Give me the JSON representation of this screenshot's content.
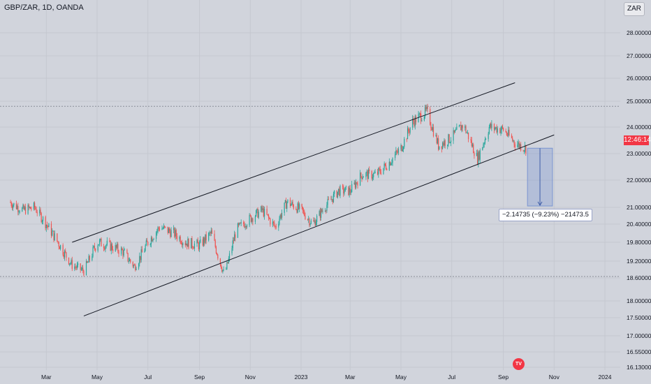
{
  "header": {
    "symbol": "GBP/ZAR, 1D, OANDA",
    "currency": "ZAR"
  },
  "price_tag": "12:46:14",
  "measure_label": "−2.14735 (−9.23%) −21473.5",
  "logo": "TV",
  "colors": {
    "up": "#26a69a",
    "down": "#ef5350",
    "background": "#d1d4dc",
    "measure": "#7a95d1"
  },
  "chart_data": {
    "type": "candlestick",
    "title": "GBP/ZAR, 1D, OANDA",
    "y_ticks": [
      "28.00000",
      "27.00000",
      "26.00000",
      "25.00000",
      "24.00000",
      "23.00000",
      "22.00000",
      "21.00000",
      "20.40000",
      "19.80000",
      "19.20000",
      "18.60000",
      "18.00000",
      "17.50000",
      "17.00000",
      "16.55000",
      "16.13000"
    ],
    "x_ticks": [
      "Mar",
      "May",
      "Jul",
      "Sep",
      "Nov",
      "2023",
      "Mar",
      "May",
      "Jul",
      "Sep",
      "Nov",
      "2024"
    ],
    "ylim": [
      16.13,
      28.0
    ],
    "y_scale": "log",
    "grid": true,
    "price_path": [
      {
        "date": "2022-01-15",
        "close": 21.2
      },
      {
        "date": "2022-02-01",
        "close": 20.9
      },
      {
        "date": "2022-02-15",
        "close": 21.0
      },
      {
        "date": "2022-03-01",
        "close": 20.4
      },
      {
        "date": "2022-03-15",
        "close": 19.8
      },
      {
        "date": "2022-04-01",
        "close": 19.05
      },
      {
        "date": "2022-04-15",
        "close": 18.85
      },
      {
        "date": "2022-05-01",
        "close": 19.8
      },
      {
        "date": "2022-05-15",
        "close": 19.7
      },
      {
        "date": "2022-06-01",
        "close": 19.5
      },
      {
        "date": "2022-06-15",
        "close": 19.0
      },
      {
        "date": "2022-07-01",
        "close": 19.8
      },
      {
        "date": "2022-07-15",
        "close": 20.3
      },
      {
        "date": "2022-08-01",
        "close": 20.1
      },
      {
        "date": "2022-08-15",
        "close": 19.8
      },
      {
        "date": "2022-09-01",
        "close": 19.7
      },
      {
        "date": "2022-09-15",
        "close": 20.1
      },
      {
        "date": "2022-10-01",
        "close": 18.7
      },
      {
        "date": "2022-10-15",
        "close": 20.2
      },
      {
        "date": "2022-11-01",
        "close": 20.6
      },
      {
        "date": "2022-11-15",
        "close": 20.9
      },
      {
        "date": "2022-12-01",
        "close": 20.3
      },
      {
        "date": "2022-12-15",
        "close": 21.2
      },
      {
        "date": "2023-01-01",
        "close": 20.9
      },
      {
        "date": "2023-01-15",
        "close": 20.4
      },
      {
        "date": "2023-02-01",
        "close": 21.1
      },
      {
        "date": "2023-02-15",
        "close": 21.6
      },
      {
        "date": "2023-03-01",
        "close": 21.6
      },
      {
        "date": "2023-03-15",
        "close": 22.2
      },
      {
        "date": "2023-04-01",
        "close": 22.2
      },
      {
        "date": "2023-04-15",
        "close": 22.6
      },
      {
        "date": "2023-05-01",
        "close": 23.2
      },
      {
        "date": "2023-05-15",
        "close": 24.2
      },
      {
        "date": "2023-06-01",
        "close": 24.6
      },
      {
        "date": "2023-06-15",
        "close": 23.3
      },
      {
        "date": "2023-07-01",
        "close": 23.6
      },
      {
        "date": "2023-07-15",
        "close": 24.1
      },
      {
        "date": "2023-08-01",
        "close": 22.8
      },
      {
        "date": "2023-08-15",
        "close": 24.0
      },
      {
        "date": "2023-09-01",
        "close": 23.9
      },
      {
        "date": "2023-09-15",
        "close": 23.4
      },
      {
        "date": "2023-09-28",
        "close": 23.2
      }
    ],
    "horizontal_levels": [
      24.8,
      18.65
    ],
    "channel": {
      "upper": [
        {
          "date": "2022-04-01",
          "price": 19.8
        },
        {
          "date": "2023-09-15",
          "price": 25.8
        }
      ],
      "lower": [
        {
          "date": "2022-04-15",
          "price": 17.55
        },
        {
          "date": "2023-11-01",
          "price": 23.7
        }
      ]
    },
    "measure": {
      "start_date": "2023-09-30",
      "end_date": "2023-10-30",
      "from": 23.2,
      "to": 21.05,
      "label": "−2.14735 (−9.23%) −21473.5"
    }
  }
}
